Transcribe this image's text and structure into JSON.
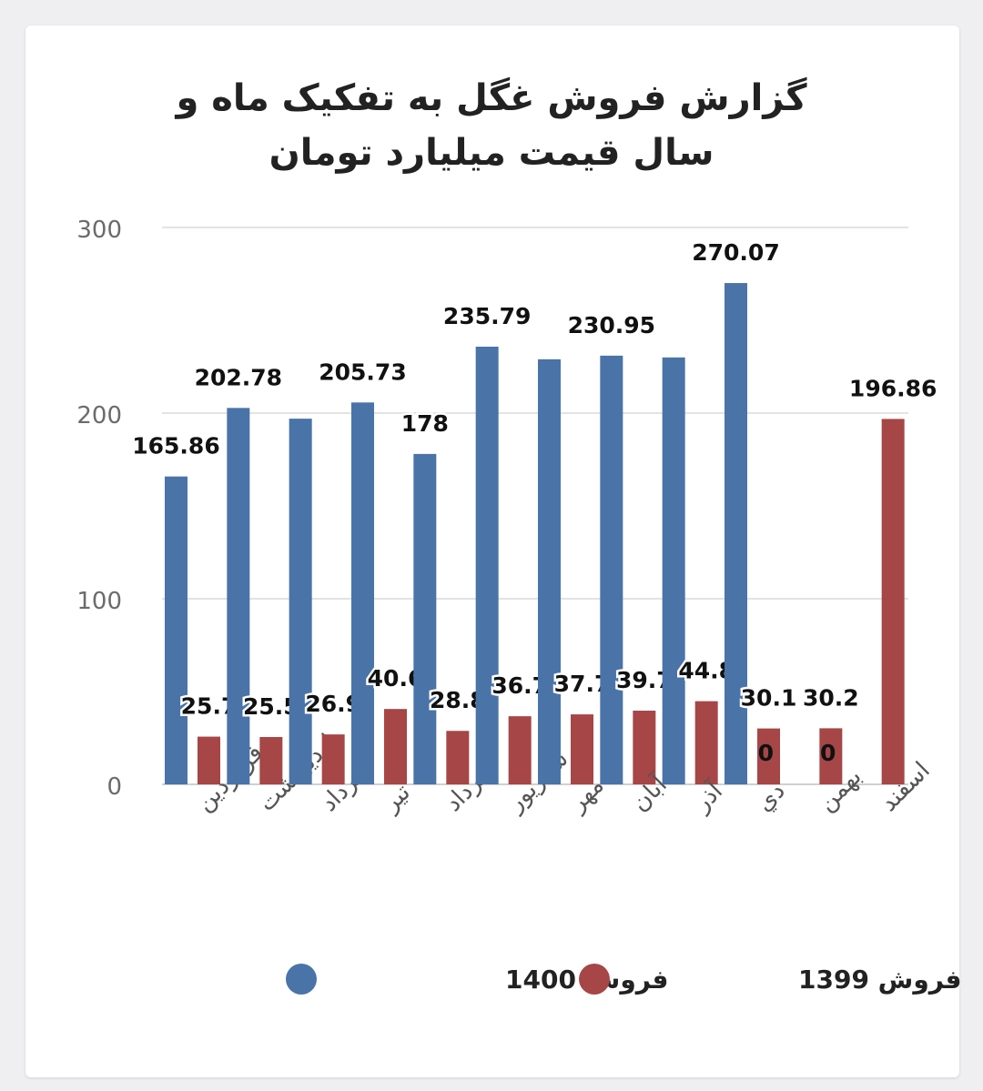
{
  "chart_data": {
    "type": "bar",
    "title": "گزارش فروش غگل به تفکیک ماه و سال قیمت میلیارد تومان",
    "categories": [
      "فروردين",
      "ارديبهشت",
      "خرداد",
      "تير",
      "مرداد",
      "شهريور",
      "مهر",
      "آبان",
      "آذر",
      "دي",
      "بهمن",
      "اسفند"
    ],
    "series": [
      {
        "name": "فروش 1400",
        "color": "#4a73a8",
        "values": [
          165.86,
          202.78,
          197,
          205.73,
          178,
          235.79,
          229,
          230.95,
          230,
          270.07,
          null,
          null
        ],
        "labels": [
          "165.86",
          "202.78",
          "",
          "205.73",
          "178",
          "235.79",
          "",
          "230.95",
          "",
          "270.07",
          "",
          ""
        ]
      },
      {
        "name": "فروش 1399",
        "color": "#a64646",
        "values": [
          25.7,
          25.5,
          26.9,
          40.6,
          28.8,
          36.7,
          37.7,
          39.7,
          44.8,
          30.1,
          30.2,
          196.86
        ],
        "labels": [
          "25.7",
          "25.5",
          "26.9",
          "40.6",
          "28.8",
          "36.7",
          "37.7",
          "39.7",
          "44.8",
          "30.1",
          "30.2",
          "196.86"
        ]
      }
    ],
    "extra_labels": [
      "0",
      "0"
    ],
    "ylim": [
      0,
      300
    ],
    "yticks": [
      0,
      100,
      200,
      300
    ],
    "grid": true,
    "legend_position": "bottom"
  }
}
